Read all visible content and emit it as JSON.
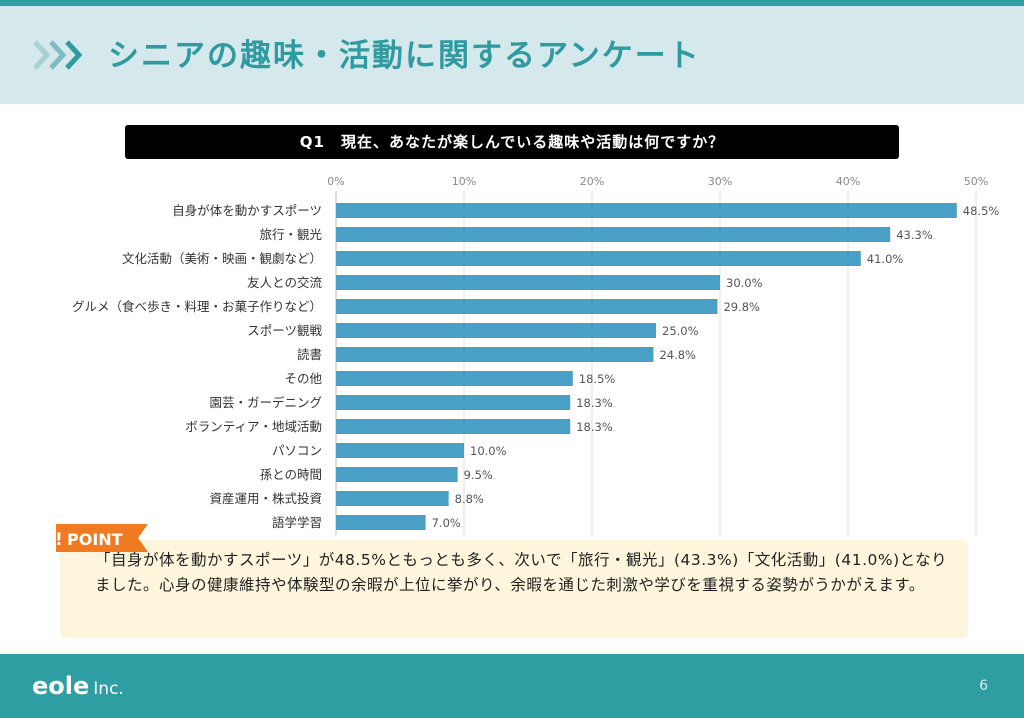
{
  "header": {
    "title": "シニアの趣味・活動に関するアンケート",
    "icon": "triple-chevron-right-icon"
  },
  "question": "Q1　現在、あなたが楽しんでいる趣味や活動は何ですか？",
  "chart_data": {
    "type": "bar",
    "orientation": "horizontal",
    "title": "Q1　現在、あなたが楽しんでいる趣味や活動は何ですか？",
    "xlabel": "",
    "ylabel": "",
    "xlim": [
      0,
      50
    ],
    "x_ticks": [
      "0%",
      "10%",
      "20%",
      "30%",
      "40%",
      "50%"
    ],
    "tick_values": [
      0,
      10,
      20,
      30,
      40,
      50
    ],
    "grid": true,
    "bar_color": "#4a9fc7",
    "categories": [
      "自身が体を動かすスポーツ",
      "旅行・観光",
      "文化活動（美術・映画・観劇など）",
      "友人との交流",
      "グルメ（食べ歩き・料理・お菓子作りなど）",
      "スポーツ観戦",
      "読書",
      "その他",
      "園芸・ガーデニング",
      "ボランティア・地域活動",
      "パソコン",
      "孫との時間",
      "資産運用・株式投資",
      "語学学習"
    ],
    "values": [
      48.5,
      43.3,
      41.0,
      30.0,
      29.8,
      25.0,
      24.8,
      18.5,
      18.3,
      18.3,
      10.0,
      9.5,
      8.8,
      7.0
    ],
    "value_labels": [
      "48.5%",
      "43.3%",
      "41.0%",
      "30.0%",
      "29.8%",
      "25.0%",
      "24.8%",
      "18.5%",
      "18.3%",
      "18.3%",
      "10.0%",
      "9.5%",
      "8.8%",
      "7.0%"
    ]
  },
  "point": {
    "tag": "POINT",
    "text": "「自身が体を動かすスポーツ」が48.5%ともっとも多く、次いで「旅行・観光」(43.3%)「文化活動」(41.0%)となりました。心身の健康維持や体験型の余暇が上位に挙がり、余暇を通じた刺激や学びを重視する姿勢がうかがえます。",
    "accent": "#f07a22"
  },
  "footer": {
    "logo": "eole",
    "logo_suffix": "Inc.",
    "page": "6"
  },
  "colors": {
    "teal": "#2e9ea3",
    "header_bg": "#d5e8eb",
    "point_bg": "#fdf6dd"
  }
}
